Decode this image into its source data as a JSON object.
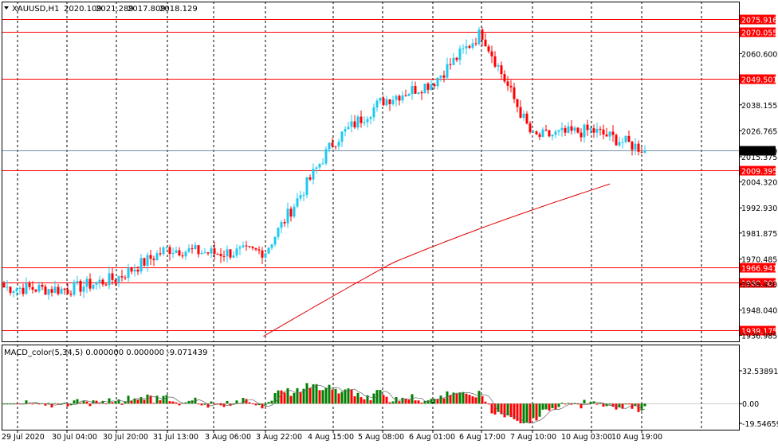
{
  "header": {
    "symbol_label": "XAUUSD,H1",
    "ohlc": [
      "2020.109",
      "2021.289",
      "2017.809",
      "2018.129"
    ]
  },
  "macd": {
    "title": "MACD_color(5,34,5) 0.000000 0.000000 -9.071439",
    "ticks": [
      "32.53891",
      "0.00",
      "-19.546598"
    ],
    "tick_values": [
      32.53891,
      0,
      -19.546598
    ],
    "positive_color": "#008000",
    "negative_color": "#ff0000"
  },
  "price_axis": {
    "ticks": [
      "2060.600",
      "2038.155",
      "2026.765",
      "2015.375",
      "2004.320",
      "1992.930",
      "1981.875",
      "1970.485",
      "1959.430",
      "1948.040",
      "1936.985"
    ],
    "tick_values": [
      2060.6,
      2038.155,
      2026.765,
      2015.375,
      2004.32,
      1992.93,
      1981.875,
      1970.485,
      1959.43,
      1948.04,
      1936.985
    ],
    "range": [
      1934.3,
      2083.5
    ]
  },
  "current_price": {
    "label": "2018.129",
    "value": 2018.129
  },
  "levels": [
    {
      "label": "2075.916",
      "value": 2075.916
    },
    {
      "label": "2070.055",
      "value": 2070.055
    },
    {
      "label": "2049.501",
      "value": 2049.501
    },
    {
      "label": "2009.395",
      "value": 2009.395
    },
    {
      "label": "1966.941",
      "value": 1966.941
    },
    {
      "label": "1960.303",
      "value": 1960.303
    },
    {
      "label": "1939.175",
      "value": 1939.175
    }
  ],
  "time_axis": {
    "labels": [
      "29 Jul 2020",
      "30 Jul 04:00",
      "30 Jul 20:00",
      "31 Jul 13:00",
      "3 Aug 06:00",
      "3 Aug 22:00",
      "4 Aug 15:00",
      "5 Aug 08:00",
      "6 Aug 01:00",
      "6 Aug 17:00",
      "7 Aug 10:00",
      "10 Aug 03:00",
      "10 Aug 19:00"
    ]
  },
  "colors": {
    "bull": "#1ec8f0",
    "bear": "#ff0000",
    "level_line": "#ff0000",
    "ma_line": "#e00000",
    "grid": "#000000",
    "price_line": "#6f8fa8"
  },
  "chart_data": {
    "type": "candlestick",
    "symbol": "XAUUSD",
    "timeframe": "H1",
    "close_path": [
      [
        "29 Jul 2020",
        1958
      ],
      [
        "30 Jul 04:00",
        1957
      ],
      [
        "30 Jul 20:00",
        1962
      ],
      [
        "31 Jul 13:00",
        1975
      ],
      [
        "3 Aug 06:00",
        1973
      ],
      [
        "3 Aug 22:00",
        1974
      ],
      [
        "4 Aug 15:00",
        2022
      ],
      [
        "5 Aug 08:00",
        2040
      ],
      [
        "6 Aug 01:00",
        2048
      ],
      [
        "6 Aug 17:00",
        2070
      ],
      [
        "7 Aug 10:00",
        2024
      ],
      [
        "10 Aug 03:00",
        2027
      ],
      [
        "10 Aug 19:00",
        2018.129
      ]
    ],
    "moving_average": [
      [
        1936.5,
        0.355
      ],
      [
        1966,
        0.53
      ],
      [
        2004.5,
        0.835
      ]
    ],
    "macd_histogram_range": [
      -19.546598,
      32.53891
    ]
  }
}
